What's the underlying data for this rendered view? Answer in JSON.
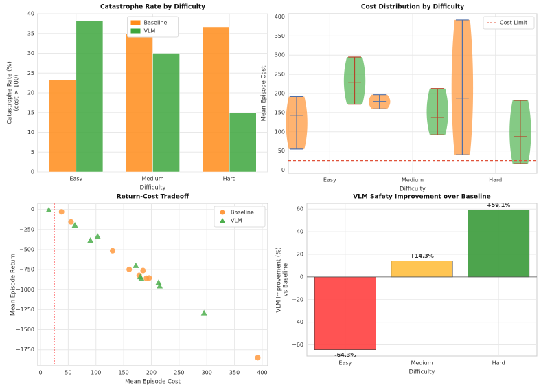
{
  "chart_data": [
    {
      "type": "grouped_bar",
      "title": "Catastrophe Rate by Difficulty",
      "xlabel": "Difficulty",
      "ylabel": [
        "Catastrophe Rate (%)",
        "(cost > 100)"
      ],
      "categories": [
        "Easy",
        "Medium",
        "Hard"
      ],
      "series": [
        {
          "name": "Baseline",
          "color": "#ff8c1a",
          "values": [
            23.3,
            35.0,
            36.7
          ]
        },
        {
          "name": "VLM",
          "color": "#3da63d",
          "values": [
            38.3,
            30.0,
            15.0
          ]
        }
      ],
      "ylim": [
        0,
        40
      ],
      "yticks": [
        0,
        5,
        10,
        15,
        20,
        25,
        30,
        35,
        40
      ],
      "grid": true,
      "legend": "upper center"
    },
    {
      "type": "violin",
      "title": "Cost Distribution by Difficulty",
      "xlabel": "Difficulty",
      "ylabel": [
        "Mean Episode Cost"
      ],
      "categories": [
        "Easy",
        "Medium",
        "Hard"
      ],
      "series": [
        {
          "name": "Baseline",
          "color": "#ff9a40",
          "min": [
            55,
            160,
            40
          ],
          "max": [
            192,
            197,
            392
          ],
          "median": [
            143,
            179,
            188
          ]
        },
        {
          "name": "VLM",
          "color": "#5cb85c",
          "min": [
            172,
            92,
            17
          ],
          "max": [
            295,
            213,
            182
          ],
          "median": [
            228,
            137,
            87
          ]
        }
      ],
      "hline": {
        "name": "Cost Limit",
        "value": 25,
        "color": "#e0533a"
      },
      "ylim": [
        -8,
        408
      ],
      "yticks": [
        0,
        50,
        100,
        150,
        200,
        250,
        300,
        350,
        400
      ],
      "grid": true,
      "legend": "upper right"
    },
    {
      "type": "scatter",
      "title": "Return-Cost Tradeoff",
      "xlabel": "Mean Episode Cost",
      "ylabel": [
        "Mean Episode Return"
      ],
      "series": [
        {
          "name": "Baseline",
          "color": "#ff9a40",
          "marker": "circle",
          "x": [
            38,
            55,
            130,
            160,
            178,
            185,
            191,
            196,
            392
          ],
          "y": [
            -30,
            -155,
            -515,
            -748,
            -822,
            -762,
            -858,
            -855,
            -1850
          ]
        },
        {
          "name": "VLM",
          "color": "#4cae4c",
          "marker": "triangle",
          "x": [
            15,
            62,
            90,
            103,
            172,
            180,
            182,
            213,
            215,
            295
          ],
          "y": [
            -5,
            -195,
            -385,
            -335,
            -700,
            -840,
            -860,
            -910,
            -955,
            -1290
          ]
        }
      ],
      "vline": {
        "value": 25,
        "color": "#ff6666"
      },
      "xlim": [
        -5,
        410
      ],
      "xticks": [
        0,
        50,
        100,
        150,
        200,
        250,
        300,
        350,
        400
      ],
      "ylim": [
        -1950,
        75
      ],
      "yticks": [
        0,
        {
          "value": -250,
          "label": "−250"
        },
        {
          "value": -500,
          "label": "−500"
        },
        {
          "value": -750,
          "label": "−750"
        },
        {
          "value": -1000,
          "label": "−1000"
        },
        {
          "value": -1250,
          "label": "−1250"
        },
        {
          "value": -1500,
          "label": "−1500"
        },
        {
          "value": -1750,
          "label": "−1750"
        }
      ],
      "grid": true,
      "legend": "upper right"
    },
    {
      "type": "bar",
      "title": "VLM Safety Improvement over Baseline",
      "xlabel": "Difficulty",
      "ylabel": [
        "VLM Improvement (%)",
        "vs Baseline"
      ],
      "categories": [
        "Easy",
        "Medium",
        "Hard"
      ],
      "values": [
        -64.3,
        14.3,
        59.1
      ],
      "value_labels": [
        "-64.3%",
        "+14.3%",
        "+59.1%"
      ],
      "colors": [
        "#ff4040",
        "#ffbf40",
        "#3a9a3a"
      ],
      "ylim": [
        -70,
        65
      ],
      "yticks": [
        {
          "value": -60,
          "label": "−60"
        },
        {
          "value": -40,
          "label": "−40"
        },
        {
          "value": -20,
          "label": "−20"
        },
        0,
        20,
        40,
        60
      ],
      "grid": true
    }
  ]
}
